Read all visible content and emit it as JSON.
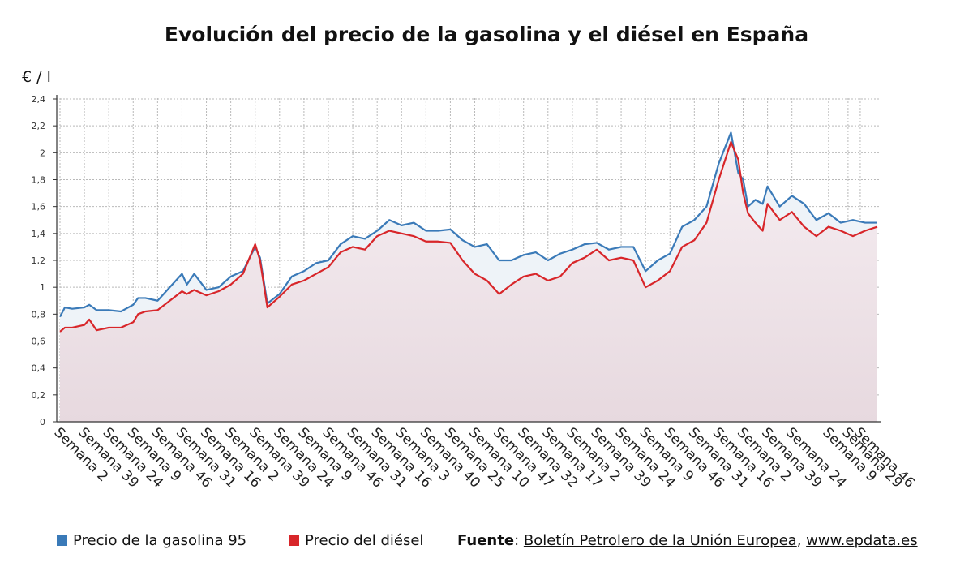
{
  "title": "Evolución del precio de la gasolina y el diésel en España",
  "unit_label": "€ / l",
  "legend": [
    {
      "name": "Precio de la gasolina 95",
      "color": "#3a7ab8"
    },
    {
      "name": "Precio del diésel",
      "color": "#d8262a"
    }
  ],
  "source": {
    "label": "Fuente",
    "sep": ": ",
    "name": "Boletín Petrolero de la Unión Europea",
    "comma": ", ",
    "url": "www.epdata.es"
  },
  "chart_data": {
    "type": "line",
    "ylim": [
      0,
      2.4
    ],
    "y_ticks": [
      0,
      0.2,
      0.4,
      0.6,
      0.8,
      1,
      1.2,
      1.4,
      1.6,
      1.8,
      2,
      2.2,
      2.4
    ],
    "y_tick_labels": [
      "0",
      "0,2",
      "0,4",
      "0,6",
      "0,8",
      "1",
      "1,2",
      "1,4",
      "1,6",
      "1,8",
      "2",
      "2,2",
      "2,4"
    ],
    "x_tick_labels": [
      "Semana 2",
      "Semana 39",
      "Semana 24",
      "Semana 9",
      "Semana 46",
      "Semana 31",
      "Semana 16",
      "Semana 2",
      "Semana 39",
      "Semana 24",
      "Semana 9",
      "Semana 46",
      "Semana 31",
      "Semana 16",
      "Semana 3",
      "Semana 40",
      "Semana 25",
      "Semana 10",
      "Semana 47",
      "Semana 32",
      "Semana 17",
      "Semana 2",
      "Semana 39",
      "Semana 24",
      "Semana 9",
      "Semana 46",
      "Semana 31",
      "Semana 16",
      "Semana 2",
      "Semana 39",
      "Semana 24",
      "Semana 9",
      "Semana 29",
      "Semana 46"
    ],
    "x_tick_positions": [
      0,
      1,
      2,
      3,
      4,
      5,
      6,
      7,
      8,
      9,
      10,
      11,
      12,
      13,
      14,
      15,
      16,
      17,
      18,
      19,
      20,
      21,
      22,
      23,
      24,
      25,
      26,
      27,
      28,
      29,
      30,
      31.5,
      32.3,
      32.8
    ],
    "x_max": 33.5,
    "grid": true,
    "series": [
      {
        "name": "Precio de la gasolina 95",
        "color": "#3a7ab8",
        "x": [
          0,
          0.2,
          0.5,
          1,
          1.2,
          1.5,
          2,
          2.5,
          3,
          3.2,
          3.5,
          4,
          4.5,
          5,
          5.2,
          5.5,
          6,
          6.5,
          7,
          7.5,
          8,
          8.2,
          8.5,
          9,
          9.5,
          10,
          10.5,
          11,
          11.5,
          12,
          12.5,
          13,
          13.5,
          14,
          14.5,
          15,
          15.5,
          16,
          16.5,
          17,
          17.5,
          18,
          18.5,
          19,
          19.5,
          20,
          20.5,
          21,
          21.5,
          22,
          22.5,
          23,
          23.5,
          24,
          24.5,
          25,
          25.5,
          26,
          26.5,
          27,
          27.5,
          27.8,
          28,
          28.2,
          28.5,
          28.8,
          29,
          29.5,
          30,
          30.5,
          31,
          31.5,
          32,
          32.5,
          33,
          33.5
        ],
        "y": [
          0.78,
          0.85,
          0.84,
          0.85,
          0.87,
          0.83,
          0.83,
          0.82,
          0.87,
          0.92,
          0.92,
          0.9,
          1.0,
          1.1,
          1.02,
          1.1,
          0.98,
          1.0,
          1.08,
          1.12,
          1.3,
          1.22,
          0.88,
          0.95,
          1.08,
          1.12,
          1.18,
          1.2,
          1.32,
          1.38,
          1.36,
          1.42,
          1.5,
          1.46,
          1.48,
          1.42,
          1.42,
          1.43,
          1.35,
          1.3,
          1.32,
          1.2,
          1.2,
          1.24,
          1.26,
          1.2,
          1.25,
          1.28,
          1.32,
          1.33,
          1.28,
          1.3,
          1.3,
          1.12,
          1.2,
          1.25,
          1.45,
          1.5,
          1.6,
          1.92,
          2.15,
          1.85,
          1.8,
          1.6,
          1.65,
          1.62,
          1.75,
          1.6,
          1.68,
          1.62,
          1.5,
          1.55,
          1.48,
          1.5,
          1.48,
          1.48
        ]
      },
      {
        "name": "Precio del diésel",
        "color": "#d8262a",
        "x": [
          0,
          0.2,
          0.5,
          1,
          1.2,
          1.5,
          2,
          2.5,
          3,
          3.2,
          3.5,
          4,
          4.5,
          5,
          5.2,
          5.5,
          6,
          6.5,
          7,
          7.5,
          8,
          8.2,
          8.5,
          9,
          9.5,
          10,
          10.5,
          11,
          11.5,
          12,
          12.5,
          13,
          13.5,
          14,
          14.5,
          15,
          15.5,
          16,
          16.5,
          17,
          17.5,
          18,
          18.5,
          19,
          19.5,
          20,
          20.5,
          21,
          21.5,
          22,
          22.5,
          23,
          23.5,
          24,
          24.5,
          25,
          25.5,
          26,
          26.5,
          27,
          27.5,
          27.8,
          28,
          28.2,
          28.5,
          28.8,
          29,
          29.5,
          30,
          30.5,
          31,
          31.5,
          32,
          32.5,
          33,
          33.5
        ],
        "y": [
          0.67,
          0.7,
          0.7,
          0.72,
          0.76,
          0.68,
          0.7,
          0.7,
          0.74,
          0.8,
          0.82,
          0.83,
          0.9,
          0.97,
          0.95,
          0.98,
          0.94,
          0.97,
          1.02,
          1.1,
          1.32,
          1.2,
          0.85,
          0.93,
          1.02,
          1.05,
          1.1,
          1.15,
          1.26,
          1.3,
          1.28,
          1.38,
          1.42,
          1.4,
          1.38,
          1.34,
          1.34,
          1.33,
          1.2,
          1.1,
          1.05,
          0.95,
          1.02,
          1.08,
          1.1,
          1.05,
          1.08,
          1.18,
          1.22,
          1.28,
          1.2,
          1.22,
          1.2,
          1.0,
          1.05,
          1.12,
          1.3,
          1.35,
          1.48,
          1.8,
          2.08,
          1.95,
          1.7,
          1.55,
          1.48,
          1.42,
          1.62,
          1.5,
          1.56,
          1.45,
          1.38,
          1.45,
          1.42,
          1.38,
          1.42,
          1.45
        ]
      }
    ]
  }
}
